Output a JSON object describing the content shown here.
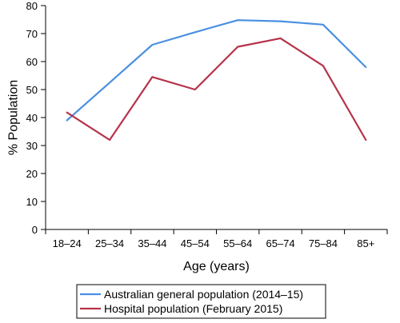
{
  "chart_data": {
    "type": "line",
    "xlabel": "Age (years)",
    "ylabel": "% Population",
    "categories": [
      "18–24",
      "25–34",
      "35–44",
      "45–54",
      "55–64",
      "65–74",
      "75–84",
      "85+"
    ],
    "ylim": [
      0,
      80
    ],
    "yticks": [
      0,
      10,
      20,
      30,
      40,
      50,
      60,
      70,
      80
    ],
    "grid": false,
    "legend_position": "bottom",
    "series": [
      {
        "name": "Australian general population (2014–15)",
        "color": "#4a90e2",
        "values": [
          39,
          52.5,
          66,
          70.5,
          74.8,
          74.4,
          73.2,
          58
        ]
      },
      {
        "name": "Hospital population (February 2015)",
        "color": "#b5334a",
        "values": [
          41.8,
          32,
          54.5,
          50,
          65.3,
          68.3,
          58.5,
          32
        ]
      }
    ]
  }
}
